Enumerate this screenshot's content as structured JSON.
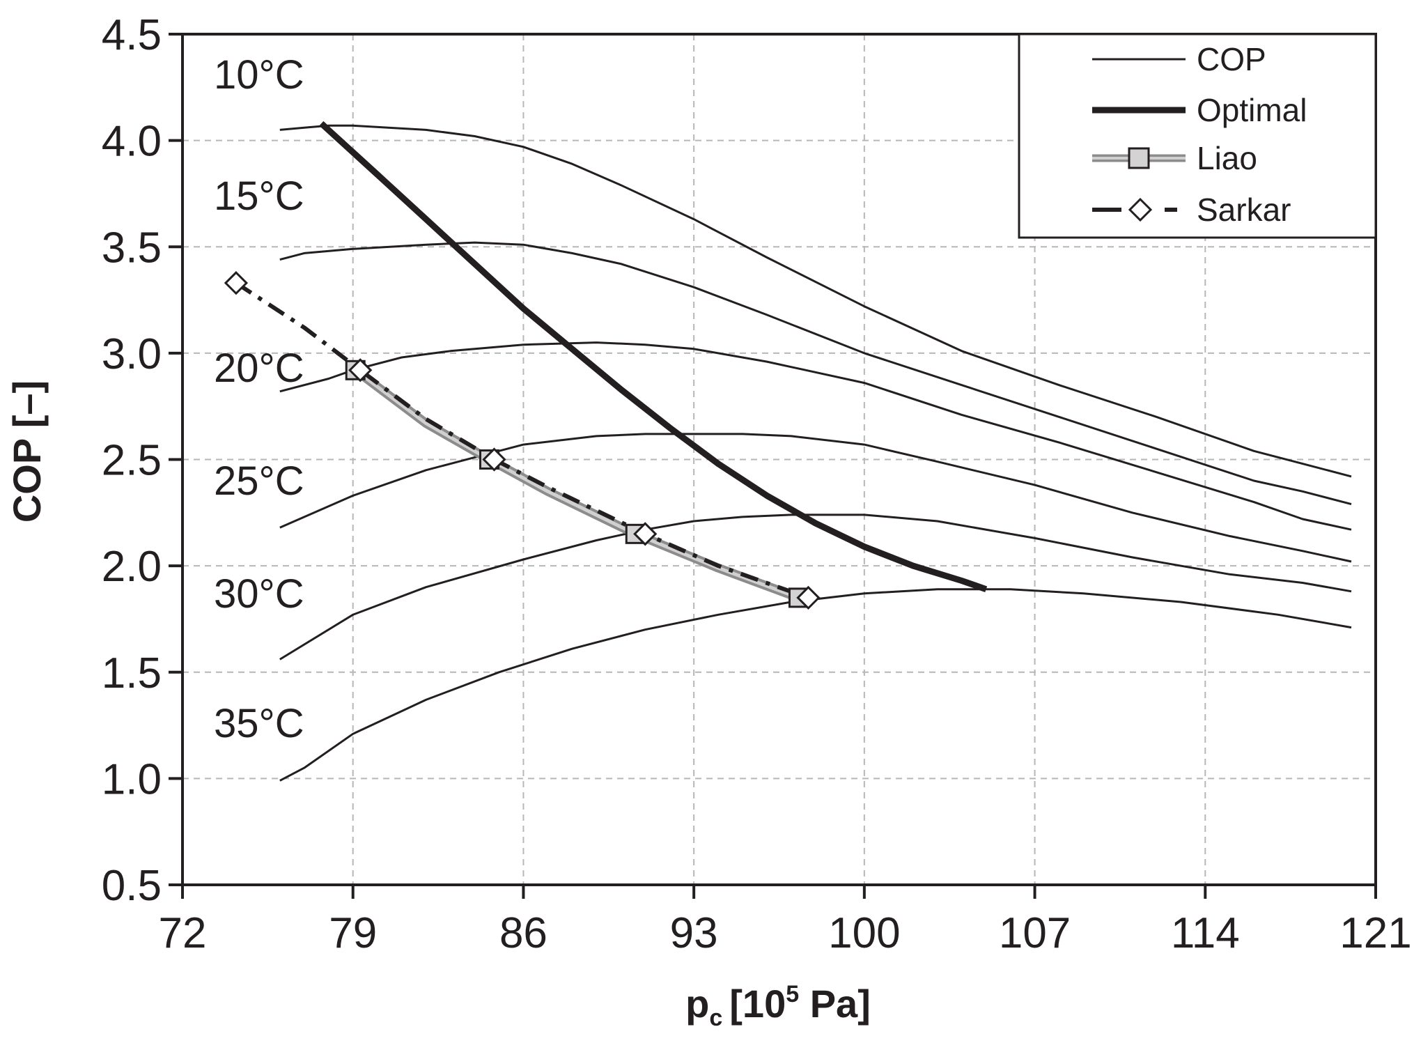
{
  "chart_data": {
    "type": "line",
    "xlabel": "p",
    "xlabel_sub": "c",
    "xlabel_unit_prefix": "[10",
    "xlabel_unit_sup": "5",
    "xlabel_unit_suffix": " Pa]",
    "ylabel": "COP [–]",
    "xlim": [
      72,
      121
    ],
    "ylim": [
      0.5,
      4.5
    ],
    "xticks": [
      72,
      79,
      86,
      93,
      100,
      107,
      114,
      121
    ],
    "yticks": [
      0.5,
      1.0,
      1.5,
      2.0,
      2.5,
      3.0,
      3.5,
      4.0,
      4.5
    ],
    "grid": true,
    "legend": {
      "placement": "top-right",
      "entries": [
        {
          "label": "COP",
          "style": "thin-line"
        },
        {
          "label": "Optimal",
          "style": "thick-line"
        },
        {
          "label": "Liao",
          "style": "grey-line-square"
        },
        {
          "label": "Sarkar",
          "style": "dashdot-diamond"
        }
      ]
    },
    "temperature_labels": [
      {
        "label": "10°C",
        "cop": 4.31
      },
      {
        "label": "15°C",
        "cop": 3.74
      },
      {
        "label": "20°C",
        "cop": 2.93
      },
      {
        "label": "25°C",
        "cop": 2.4
      },
      {
        "label": "30°C",
        "cop": 1.87
      },
      {
        "label": "35°C",
        "cop": 1.26
      }
    ],
    "series": [
      {
        "name": "COP",
        "label": "10°C",
        "x": [
          76,
          77,
          78,
          79,
          82,
          84,
          86,
          88,
          90,
          93,
          96,
          100,
          104,
          108,
          112,
          116,
          118,
          120
        ],
        "y": [
          4.05,
          4.06,
          4.07,
          4.07,
          4.05,
          4.02,
          3.97,
          3.89,
          3.79,
          3.63,
          3.45,
          3.22,
          3.01,
          2.85,
          2.7,
          2.54,
          2.48,
          2.42
        ]
      },
      {
        "name": "COP",
        "label": "15°C",
        "x": [
          76,
          77,
          79,
          82,
          84,
          86,
          88,
          90,
          93,
          96,
          100,
          104,
          108,
          112,
          116,
          118,
          120
        ],
        "y": [
          3.44,
          3.47,
          3.49,
          3.51,
          3.52,
          3.51,
          3.47,
          3.42,
          3.31,
          3.18,
          3.0,
          2.85,
          2.7,
          2.55,
          2.4,
          2.35,
          2.29
        ]
      },
      {
        "name": "COP",
        "label": "20°C",
        "x": [
          76,
          78,
          79,
          81,
          83,
          86,
          89,
          91,
          93,
          96,
          100,
          104,
          108,
          112,
          116,
          118,
          120
        ],
        "y": [
          2.82,
          2.88,
          2.92,
          2.98,
          3.01,
          3.04,
          3.05,
          3.04,
          3.02,
          2.96,
          2.86,
          2.71,
          2.58,
          2.44,
          2.3,
          2.22,
          2.17
        ]
      },
      {
        "name": "COP",
        "label": "25°C",
        "x": [
          76,
          79,
          82,
          84,
          86,
          89,
          91,
          93,
          95,
          97,
          100,
          103,
          107,
          111,
          115,
          118,
          120
        ],
        "y": [
          2.18,
          2.33,
          2.45,
          2.51,
          2.57,
          2.61,
          2.62,
          2.62,
          2.62,
          2.61,
          2.57,
          2.49,
          2.38,
          2.25,
          2.14,
          2.07,
          2.02
        ]
      },
      {
        "name": "COP",
        "label": "30°C",
        "x": [
          76,
          79,
          82,
          86,
          89,
          91,
          93,
          95,
          97,
          100,
          103,
          107,
          111,
          115,
          118,
          120
        ],
        "y": [
          1.56,
          1.77,
          1.9,
          2.03,
          2.12,
          2.17,
          2.21,
          2.23,
          2.24,
          2.24,
          2.21,
          2.13,
          2.04,
          1.96,
          1.92,
          1.88
        ]
      },
      {
        "name": "COP",
        "label": "35°C",
        "x": [
          76,
          77,
          79,
          82,
          85,
          88,
          91,
          94,
          97,
          100,
          103,
          106,
          109,
          113,
          117,
          120
        ],
        "y": [
          0.99,
          1.05,
          1.21,
          1.37,
          1.5,
          1.61,
          1.7,
          1.77,
          1.83,
          1.87,
          1.89,
          1.89,
          1.87,
          1.83,
          1.77,
          1.71
        ]
      },
      {
        "name": "Optimal",
        "x": [
          77.7,
          80,
          82,
          84,
          86,
          88,
          90,
          92,
          94,
          96,
          98,
          100,
          102,
          104,
          105.0
        ],
        "y": [
          4.08,
          3.84,
          3.63,
          3.42,
          3.21,
          3.02,
          2.83,
          2.65,
          2.48,
          2.33,
          2.2,
          2.09,
          2.0,
          1.93,
          1.89
        ]
      },
      {
        "name": "Liao",
        "x": [
          79.1,
          82,
          84.6,
          87,
          90.6,
          94,
          97.3
        ],
        "y": [
          2.92,
          2.67,
          2.5,
          2.35,
          2.15,
          1.99,
          1.85
        ]
      },
      {
        "name": "Sarkar",
        "x": [
          74.2,
          77,
          79.3,
          82,
          84.8,
          87,
          91.0,
          94,
          97.7
        ],
        "y": [
          3.33,
          3.12,
          2.92,
          2.69,
          2.5,
          2.37,
          2.15,
          2.0,
          1.85
        ]
      }
    ],
    "markers": {
      "Liao": {
        "shape": "square",
        "x": [
          79.1,
          84.6,
          90.6,
          97.3
        ],
        "y": [
          2.92,
          2.5,
          2.15,
          1.85
        ]
      },
      "Sarkar": {
        "shape": "diamond",
        "x": [
          74.2,
          79.3,
          84.8,
          91.0,
          97.7
        ],
        "y": [
          3.33,
          2.92,
          2.5,
          2.15,
          1.85
        ]
      }
    }
  }
}
